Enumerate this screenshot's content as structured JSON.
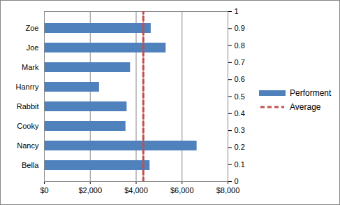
{
  "chart_data": {
    "type": "bar",
    "orientation": "horizontal",
    "categories": [
      "Zoe",
      "Joe",
      "Mark",
      "Hanrry",
      "Rabbit",
      "Cooky",
      "Nancy",
      "Bella"
    ],
    "series": [
      {
        "name": "Performent",
        "type": "bar",
        "color": "#4f81bd",
        "values": [
          4650,
          5300,
          3750,
          2400,
          3600,
          3550,
          6650,
          4600
        ]
      },
      {
        "name": "Average",
        "type": "line",
        "line_style": "dashed",
        "color": "#c0504d",
        "axis": "y2",
        "x": [
          4312.5,
          4312.5
        ],
        "values": [
          0,
          1
        ]
      }
    ],
    "xlim": [
      0,
      8000
    ],
    "xticks": [
      {
        "value": 0,
        "label": "$0"
      },
      {
        "value": 2000,
        "label": "$2,000"
      },
      {
        "value": 4000,
        "label": "$4,000"
      },
      {
        "value": 6000,
        "label": "$6,000"
      },
      {
        "value": 8000,
        "label": "$8,000"
      }
    ],
    "y2lim": [
      0,
      1
    ],
    "y2ticks": [
      0,
      0.1,
      0.2,
      0.3,
      0.4,
      0.5,
      0.6,
      0.7,
      0.8,
      0.9,
      1
    ],
    "grid": true,
    "legend": "right"
  }
}
